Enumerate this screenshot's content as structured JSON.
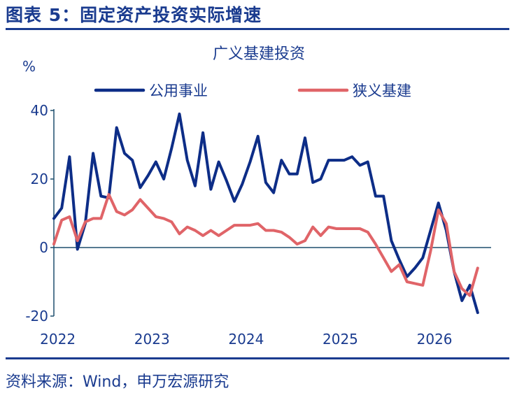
{
  "figure_title": "图表 5：固定资产投资实际增速",
  "source_note": "资料来源：Wind，申万宏源研究",
  "chart_data": {
    "type": "line",
    "title": "广义基建投资",
    "ylabel": "%",
    "ylim": [
      -20,
      40
    ],
    "xlim": [
      0,
      55
    ],
    "y_ticks": [
      "40",
      "20",
      "0",
      "-20"
    ],
    "x_ticks": [
      {
        "label": "2022",
        "x": 0.5
      },
      {
        "label": "2023",
        "x": 12.5
      },
      {
        "label": "2024",
        "x": 24.5
      },
      {
        "label": "2025",
        "x": 36.5
      },
      {
        "label": "2026",
        "x": 48.5
      }
    ],
    "legend": [
      "公用事业",
      "狭义基建"
    ],
    "legend_placement": "top",
    "colors": {
      "公用事业": "#0d2d87",
      "狭义基建": "#e06468",
      "axis": "#1e4f6e",
      "text": "#1a3b8f"
    },
    "series": [
      {
        "name": "公用事业",
        "x": [
          0,
          1,
          2,
          3,
          4,
          5,
          6,
          7,
          8,
          9,
          10,
          11,
          12,
          13,
          14,
          15,
          16,
          17,
          18,
          19,
          20,
          21,
          22,
          23,
          24,
          25,
          26,
          27,
          28,
          29,
          30,
          31,
          32,
          33,
          34,
          35,
          36,
          37,
          38,
          39,
          40,
          41,
          42,
          43,
          44,
          45,
          46,
          47,
          48,
          49,
          50,
          51,
          52,
          53,
          54
        ],
        "values": [
          8.5,
          11.5,
          26.5,
          -0.5,
          7,
          27.5,
          15,
          14.5,
          35,
          27.5,
          25.5,
          17.5,
          21,
          25,
          20,
          29,
          39,
          25.5,
          18,
          33.5,
          17,
          25,
          19.5,
          13.5,
          18.5,
          25,
          32.5,
          19,
          16,
          25.5,
          21.5,
          21.5,
          32,
          19,
          20,
          25.5,
          25.5,
          25.5,
          26.5,
          24,
          25,
          15,
          15,
          2,
          -3.5,
          -8.5,
          -6,
          -3,
          5,
          13,
          5,
          -7,
          -15.5,
          -11,
          -19
        ]
      },
      {
        "name": "狭义基建",
        "x": [
          0,
          1,
          2,
          3,
          4,
          5,
          6,
          7,
          8,
          9,
          10,
          11,
          12,
          13,
          14,
          15,
          16,
          17,
          18,
          19,
          20,
          21,
          22,
          23,
          24,
          25,
          26,
          27,
          28,
          29,
          30,
          31,
          32,
          33,
          34,
          35,
          36,
          37,
          38,
          39,
          40,
          41,
          42,
          43,
          44,
          45,
          46,
          47,
          48,
          49,
          50,
          51,
          52,
          53,
          54
        ],
        "values": [
          1,
          8,
          9,
          2,
          7.5,
          8.5,
          8.5,
          15.5,
          10.5,
          9.5,
          11,
          14,
          11.5,
          9,
          8.5,
          7.5,
          4,
          6,
          5,
          3.5,
          5,
          3.5,
          5,
          6.5,
          6.5,
          6.5,
          7,
          5,
          5,
          4.5,
          3,
          1,
          2,
          6,
          3.5,
          6,
          5.5,
          5.5,
          5.5,
          5.5,
          4.5,
          1,
          -3,
          -7,
          -5,
          -10,
          -10.5,
          -11,
          -1,
          11,
          7,
          -7,
          -12,
          -14,
          -6
        ]
      }
    ]
  }
}
